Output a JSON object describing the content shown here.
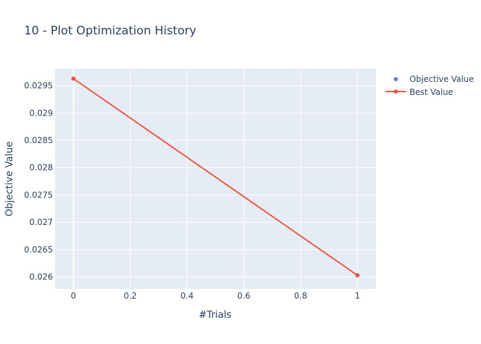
{
  "chart_data": {
    "type": "line",
    "title": "10 - Plot Optimization History",
    "xlabel": "#Trials",
    "ylabel": "Objective Value",
    "xlim": [
      -0.065,
      1.065
    ],
    "ylim": [
      0.02578,
      0.02981
    ],
    "x_ticks": [
      0,
      0.2,
      0.4,
      0.6,
      0.8,
      1
    ],
    "x_tick_labels": [
      "0",
      "0.2",
      "0.4",
      "0.6",
      "0.8",
      "1"
    ],
    "y_ticks": [
      0.026,
      0.0265,
      0.027,
      0.0275,
      0.028,
      0.0285,
      0.029,
      0.0295
    ],
    "y_tick_labels": [
      "0.026",
      "0.0265",
      "0.027",
      "0.0275",
      "0.028",
      "0.0285",
      "0.029",
      "0.0295"
    ],
    "grid": true,
    "legend_position": "top-right",
    "series": [
      {
        "name": "Objective Value",
        "mode": "markers",
        "color": "#636efa",
        "x": [
          0,
          1
        ],
        "y": [
          0.02963,
          0.02603
        ]
      },
      {
        "name": "Best Value",
        "mode": "lines+markers",
        "color": "#ef553b",
        "x": [
          0,
          1
        ],
        "y": [
          0.02963,
          0.02603
        ]
      }
    ],
    "colors": {
      "plot_background": "#e5ecf6",
      "grid": "#ffffff",
      "text": "#2a3f5f"
    }
  }
}
